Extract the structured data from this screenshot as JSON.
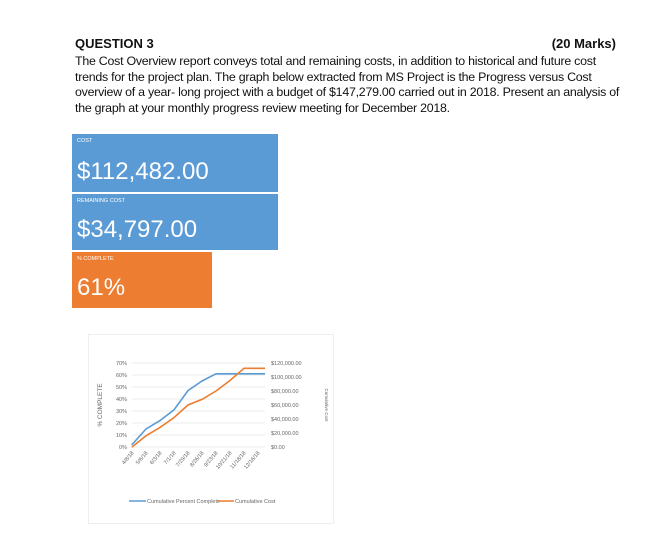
{
  "question": {
    "title": "QUESTION 3",
    "marks": "(20 Marks)",
    "text": "The Cost Overview report conveys total and remaining costs, in addition to historical and future cost trends for the project plan. The graph below extracted from MS Project is the Progress versus Cost overview of a year- long project with a budget of $147,279.00 carried out in 2018. Present an analysis of the graph at your monthly progress review meeting for December 2018."
  },
  "tiles": [
    {
      "label": "COST",
      "value": "$112,482.00",
      "color": "#5b9bd5"
    },
    {
      "label": "REMAINING COST",
      "value": "$34,797.00",
      "color": "#5b9bd5"
    },
    {
      "label": "% COMPLETE",
      "value": "61%",
      "color": "#ed7d31"
    }
  ],
  "chart_data": {
    "type": "line",
    "x": [
      "4/8/18",
      "5/6/18",
      "6/3/18",
      "7/1/18",
      "7/29/18",
      "8/26/18",
      "9/23/18",
      "10/21/18",
      "11/18/18",
      "12/16/18"
    ],
    "ylabel": "% COMPLETE",
    "y2label": "Cumulative Cost",
    "ylim": [
      0,
      70
    ],
    "y2lim": [
      0,
      120000
    ],
    "yticks": [
      "0%",
      "10%",
      "20%",
      "30%",
      "40%",
      "50%",
      "60%",
      "70%"
    ],
    "y2ticks": [
      "$0.00",
      "$20,000.00",
      "$40,000.00",
      "$60,000.00",
      "$80,000.00",
      "$100,000.00",
      "$120,000.00"
    ],
    "grid": true,
    "legend": "bottom",
    "series": [
      {
        "name": "Cumulative Percent Complete",
        "axis": "left",
        "color": "#5b9bd5",
        "values": [
          2,
          15,
          22,
          31,
          47,
          55,
          61,
          61,
          61,
          61
        ]
      },
      {
        "name": "Cumulative Cost",
        "axis": "right",
        "color": "#ed7d31",
        "values": [
          0,
          16000,
          28000,
          42000,
          60000,
          68000,
          80000,
          95000,
          112482,
          112482
        ]
      }
    ]
  }
}
